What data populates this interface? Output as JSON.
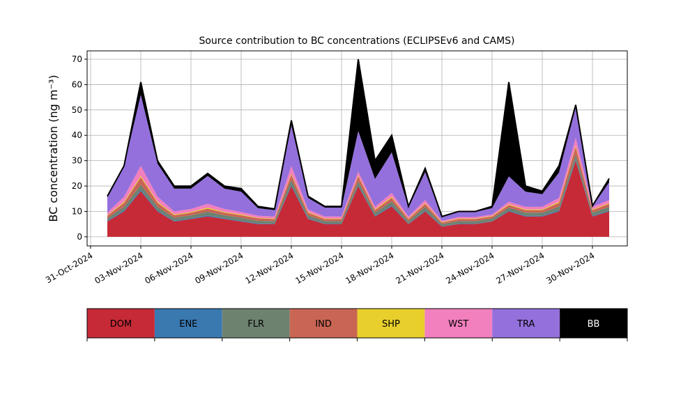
{
  "chart_data": {
    "type": "stacked_area",
    "title": "Source contribution to BC concentrations (ECLIPSEv6 and CAMS)",
    "y_label": "BC concentration (ng m⁻³)",
    "x": [
      "2024-11-01",
      "2024-11-02",
      "2024-11-03",
      "2024-11-04",
      "2024-11-05",
      "2024-11-06",
      "2024-11-07",
      "2024-11-08",
      "2024-11-09",
      "2024-11-10",
      "2024-11-11",
      "2024-11-12",
      "2024-11-13",
      "2024-11-14",
      "2024-11-15",
      "2024-11-16",
      "2024-11-17",
      "2024-11-18",
      "2024-11-19",
      "2024-11-20",
      "2024-11-21",
      "2024-11-22",
      "2024-11-23",
      "2024-11-24",
      "2024-11-25",
      "2024-11-26",
      "2024-11-27",
      "2024-11-28",
      "2024-11-29",
      "2024-11-30",
      "2024-12-01"
    ],
    "series": [
      {
        "name": "DOM",
        "color": "#c62a37",
        "values": [
          6,
          10,
          18,
          10,
          6,
          7,
          8,
          7,
          6,
          5,
          5,
          20,
          7,
          5,
          5,
          20,
          8,
          12,
          5,
          10,
          4,
          5,
          5,
          6,
          10,
          8,
          8,
          10,
          30,
          8,
          10
        ]
      },
      {
        "name": "ENE",
        "color": "#3a78b0",
        "values": [
          0.3,
          0.4,
          0.5,
          0.4,
          0.3,
          0.3,
          0.4,
          0.3,
          0.3,
          0.3,
          0.2,
          0.5,
          0.3,
          0.2,
          0.2,
          0.4,
          0.3,
          0.4,
          0.2,
          0.3,
          0.2,
          0.2,
          0.2,
          0.2,
          0.3,
          0.3,
          0.3,
          0.4,
          0.5,
          0.3,
          0.3
        ]
      },
      {
        "name": "FLR",
        "color": "#6e8270",
        "values": [
          1,
          1.5,
          2,
          1.5,
          1.2,
          1.2,
          1.5,
          1.2,
          1.2,
          1,
          1,
          2,
          1.2,
          1,
          1,
          1.5,
          1.2,
          1.5,
          1,
          1.5,
          0.8,
          1,
          1,
          1,
          1.2,
          1.2,
          1.2,
          1.5,
          2,
          1.2,
          1.5
        ]
      },
      {
        "name": "IND",
        "color": "#c96555",
        "values": [
          1,
          1.5,
          3,
          1.5,
          1,
          1,
          1.2,
          1,
          1,
          1,
          0.8,
          2,
          1,
          0.8,
          0.8,
          2,
          1,
          1.5,
          0.8,
          1.2,
          0.6,
          0.8,
          0.8,
          0.8,
          1,
          1,
          1,
          1.5,
          3,
          1,
          1.2
        ]
      },
      {
        "name": "SHP",
        "color": "#e8cf2c",
        "values": [
          0.2,
          0.4,
          0.5,
          0.4,
          0.3,
          0.3,
          0.4,
          0.3,
          0.3,
          0.2,
          0.2,
          0.4,
          0.3,
          0.2,
          0.2,
          0.3,
          0.3,
          0.4,
          0.2,
          0.3,
          0.2,
          0.2,
          0.2,
          0.2,
          0.3,
          0.3,
          0.3,
          0.4,
          0.5,
          0.3,
          0.3
        ]
      },
      {
        "name": "WST",
        "color": "#f27fbe",
        "values": [
          1,
          2,
          4,
          2,
          1.2,
          1.2,
          1.5,
          1.2,
          1,
          0.8,
          0.8,
          3,
          1,
          0.8,
          0.8,
          1.5,
          1,
          1.5,
          0.8,
          1.2,
          0.5,
          0.6,
          0.6,
          0.6,
          1,
          1,
          1,
          1.5,
          3,
          1,
          1.2
        ]
      },
      {
        "name": "TRA",
        "color": "#9470dc",
        "values": [
          6,
          12,
          28,
          13,
          9,
          8,
          11,
          8,
          8,
          3,
          2.5,
          16,
          4.5,
          3.5,
          3.5,
          16,
          11,
          16,
          3.5,
          11,
          1.5,
          2,
          2,
          2.5,
          10,
          6,
          5,
          10,
          12,
          0.2,
          7
        ]
      },
      {
        "name": "BB",
        "color": "#000000",
        "values": [
          0.5,
          0.2,
          5,
          1.2,
          1,
          1,
          1,
          1,
          1.2,
          0.7,
          0.5,
          2,
          0.7,
          0.5,
          0.5,
          28.3,
          7.2,
          6.7,
          0.5,
          1.5,
          0.2,
          0.2,
          0.2,
          0.7,
          37.2,
          2.2,
          1.2,
          2.7,
          1,
          0.2,
          1.5
        ]
      }
    ],
    "xlim": [
      "2024-10-31",
      "2024-12-02"
    ],
    "xticks": [
      {
        "value": "2024-10-31",
        "label": "31-Oct-2024"
      },
      {
        "value": "2024-11-03",
        "label": "03-Nov-2024"
      },
      {
        "value": "2024-11-06",
        "label": "06-Nov-2024"
      },
      {
        "value": "2024-11-09",
        "label": "09-Nov-2024"
      },
      {
        "value": "2024-11-12",
        "label": "12-Nov-2024"
      },
      {
        "value": "2024-11-15",
        "label": "15-Nov-2024"
      },
      {
        "value": "2024-11-18",
        "label": "18-Nov-2024"
      },
      {
        "value": "2024-11-21",
        "label": "21-Nov-2024"
      },
      {
        "value": "2024-11-24",
        "label": "24-Nov-2024"
      },
      {
        "value": "2024-11-27",
        "label": "27-Nov-2024"
      },
      {
        "value": "2024-11-30",
        "label": "30-Nov-2024"
      }
    ],
    "ylim": [
      -3.6,
      73.3
    ],
    "yticks": [
      0,
      10,
      20,
      30,
      40,
      50,
      60,
      70
    ],
    "grid": true
  }
}
